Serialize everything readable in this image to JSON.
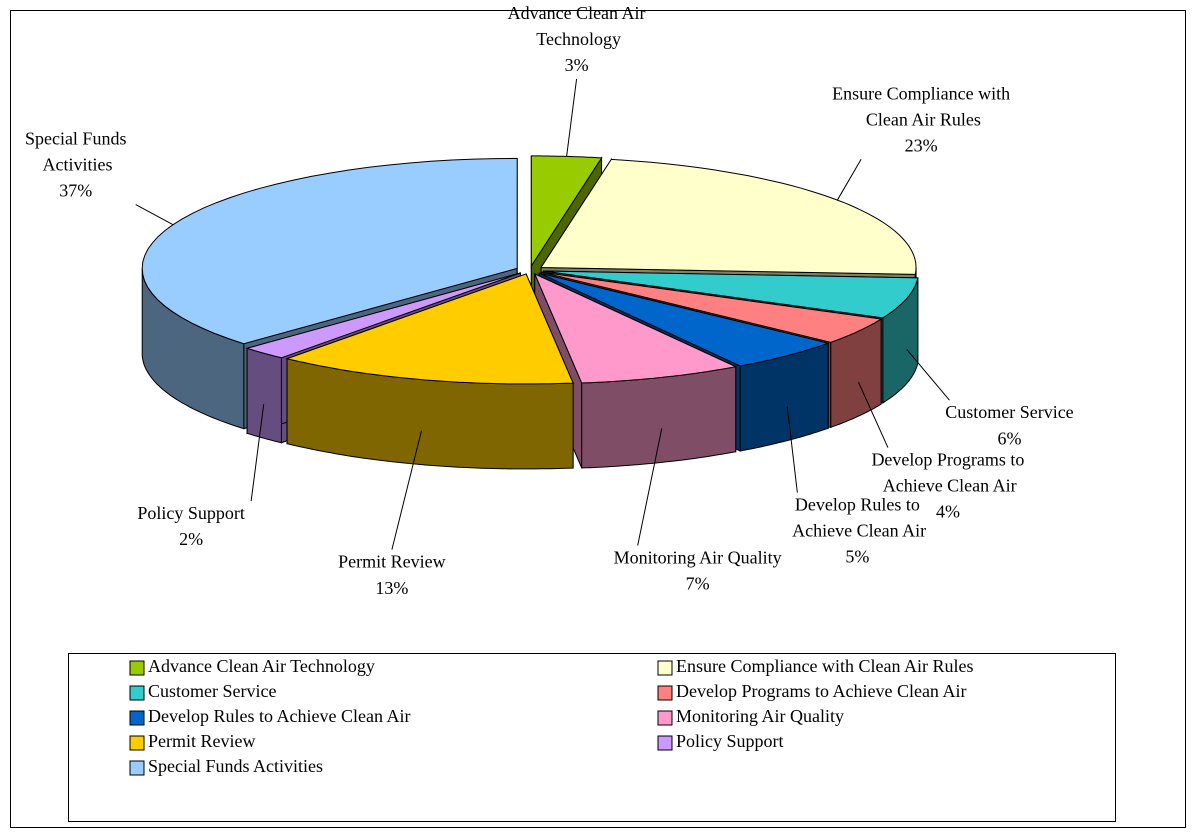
{
  "chart_data": {
    "type": "pie3d",
    "categories": [
      "Advance Clean Air Technology",
      "Ensure Compliance with Clean Air Rules",
      "Customer Service",
      "Develop Programs to Achieve Clean Air",
      "Develop Rules to Achieve Clean Air",
      "Monitoring Air Quality",
      "Permit Review",
      "Policy Support",
      "Special Funds Activities"
    ],
    "values": [
      3,
      23,
      6,
      4,
      5,
      7,
      13,
      2,
      37
    ],
    "value_labels": [
      "3%",
      "23%",
      "6%",
      "4%",
      "5%",
      "7%",
      "13%",
      "2%",
      "37%"
    ],
    "colors": [
      "#99cc00",
      "#ffffcc",
      "#33cccc",
      "#ff8080",
      "#0066cc",
      "#ff99cc",
      "#ffcc00",
      "#cc99ff",
      "#99ccff"
    ],
    "legend": "bottom"
  }
}
